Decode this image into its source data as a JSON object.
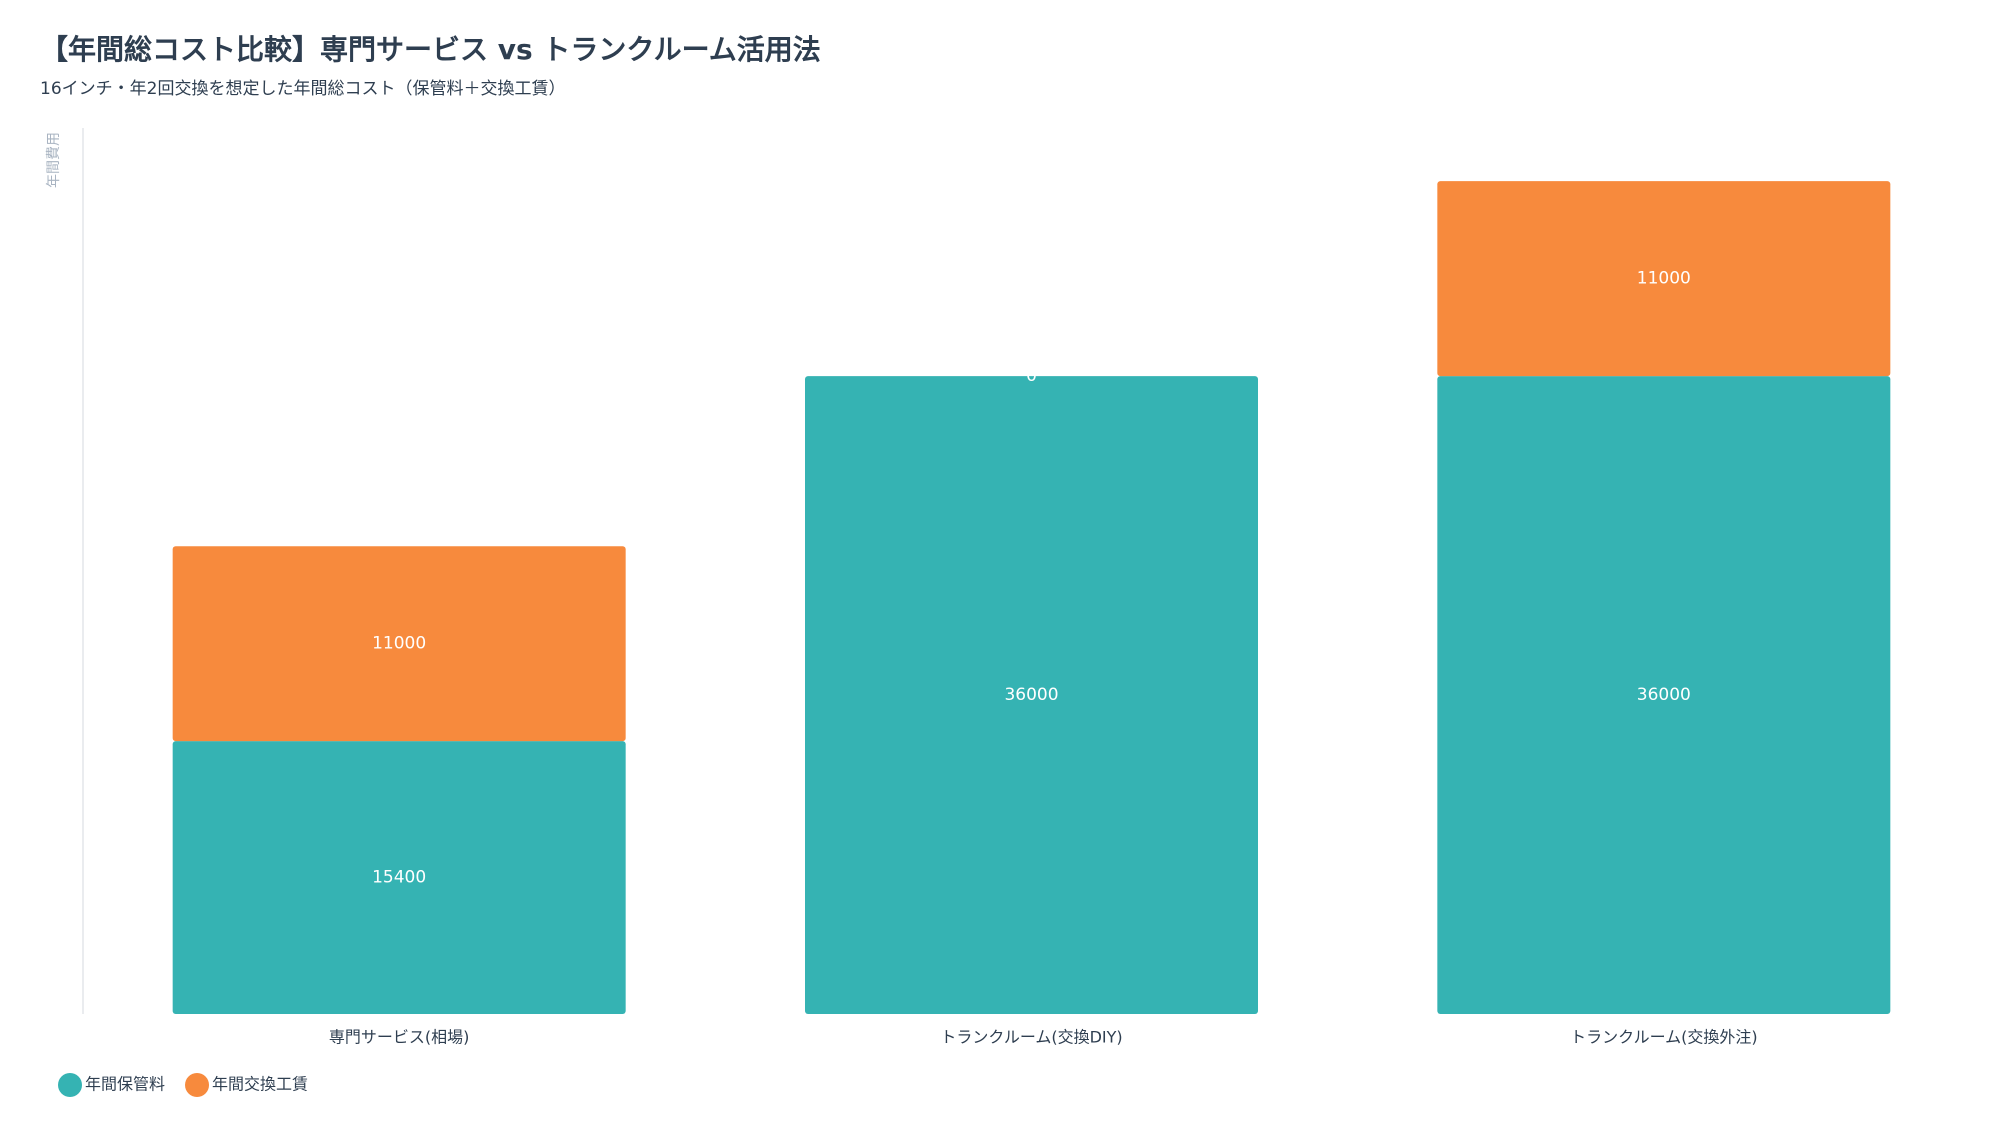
{
  "chart_data": {
    "type": "stacked-bar",
    "title": "【年間総コスト比較】専門サービス vs トランクルーム活用法",
    "subtitle": "16インチ・年2回交換を想定した年間総コスト（保管料＋交換工賃）",
    "y_label": "年間費用",
    "categories": [
      "専門サービス(相場)",
      "トランクルーム(交換DIY)",
      "トランクルーム(交換外注)"
    ],
    "series": [
      {
        "name": "年間保管料",
        "color": "#35b3b3",
        "values": [
          15400,
          36000,
          36000
        ]
      },
      {
        "name": "年間交換工賃",
        "color": "#f78a3d",
        "values": [
          11000,
          0,
          11000
        ]
      }
    ],
    "ylim": [
      0,
      50000
    ],
    "legend": "bottom-left"
  }
}
